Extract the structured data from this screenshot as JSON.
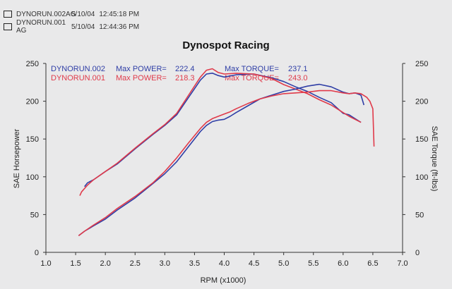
{
  "legend": [
    {
      "run": "DYNORUN.002AG",
      "date": "5/10/04",
      "time": "12:45:18 PM",
      "color": "#2f3ea6"
    },
    {
      "run": "DYNORUN.001 AG",
      "date": "5/10/04",
      "time": "12:44:36 PM",
      "color": "#e03a4a"
    }
  ],
  "chart_data": {
    "type": "line",
    "title": "Dynospot Racing",
    "xlabel": "RPM (x1000)",
    "ylabel": "SAE Horsepower",
    "y2label": "SAE Torque (ft-lbs)",
    "xlim": [
      1.0,
      7.0
    ],
    "ylim": [
      0,
      250
    ],
    "y2lim": [
      0,
      250
    ],
    "xticks": [
      "1.0",
      "1.5",
      "2.0",
      "2.5",
      "3.0",
      "3.5",
      "4.0",
      "4.5",
      "5.0",
      "5.5",
      "6.0",
      "6.5",
      "7.0"
    ],
    "yticks": [
      "0",
      "50",
      "100",
      "150",
      "200",
      "250"
    ],
    "y2ticks": [
      "0",
      "50",
      "100",
      "150",
      "200",
      "250"
    ],
    "grid": false,
    "annotations": [
      {
        "run": "DYNORUN.002",
        "power_label": "Max POWER=",
        "power": "222.4",
        "torque_label": "Max TORQUE=",
        "torque": "237.1",
        "color": "#2f3ea6"
      },
      {
        "run": "DYNORUN.001",
        "power_label": "Max POWER=",
        "power": "218.3",
        "torque_label": "Max TORQUE=",
        "torque": "243.0",
        "color": "#e03a4a"
      }
    ],
    "series": [
      {
        "name": "DYNORUN.002 Torque",
        "axis": "right",
        "color": "#2f3ea6",
        "x": [
          1.65,
          1.7,
          1.75,
          1.8,
          2.0,
          2.2,
          2.5,
          2.8,
          3.0,
          3.2,
          3.4,
          3.6,
          3.7,
          3.8,
          3.9,
          4.0,
          4.2,
          4.5,
          4.8,
          5.0,
          5.2,
          5.4,
          5.6,
          5.8,
          6.0,
          6.1,
          6.2,
          6.3
        ],
        "y": [
          87,
          92,
          94,
          96,
          107,
          117,
          137,
          156,
          168,
          182,
          205,
          228,
          236,
          237.1,
          234,
          232,
          235,
          236,
          231,
          226,
          219,
          213,
          205,
          198,
          184,
          182,
          177,
          172
        ]
      },
      {
        "name": "DYNORUN.001 Torque",
        "axis": "right",
        "color": "#e03a4a",
        "x": [
          1.57,
          1.6,
          1.7,
          1.8,
          2.0,
          2.2,
          2.5,
          2.8,
          3.0,
          3.2,
          3.4,
          3.6,
          3.7,
          3.8,
          3.9,
          4.0,
          4.2,
          4.5,
          4.8,
          5.0,
          5.2,
          5.4,
          5.6,
          5.8,
          6.0,
          6.1,
          6.2,
          6.3
        ],
        "y": [
          75,
          80,
          89,
          96,
          107,
          118,
          138,
          157,
          169,
          184,
          208,
          232,
          241,
          243,
          238,
          236,
          237,
          236,
          230,
          222,
          216,
          210,
          202,
          195,
          185,
          180,
          176,
          172
        ]
      },
      {
        "name": "DYNORUN.002 Power",
        "axis": "left",
        "color": "#2f3ea6",
        "x": [
          1.55,
          1.65,
          1.8,
          2.0,
          2.2,
          2.5,
          2.8,
          3.0,
          3.2,
          3.4,
          3.6,
          3.7,
          3.8,
          3.9,
          4.0,
          4.1,
          4.2,
          4.4,
          4.6,
          4.8,
          5.0,
          5.2,
          5.4,
          5.6,
          5.8,
          6.0,
          6.1,
          6.2,
          6.3,
          6.35
        ],
        "y": [
          22,
          28,
          35,
          44,
          56,
          72,
          91,
          104,
          120,
          140,
          160,
          168,
          173,
          175,
          176,
          180,
          185,
          194,
          203,
          208,
          213,
          216,
          220,
          222.4,
          219,
          212,
          210,
          211,
          208,
          195
        ]
      },
      {
        "name": "DYNORUN.001 Power",
        "axis": "left",
        "color": "#e03a4a",
        "x": [
          1.55,
          1.65,
          1.8,
          2.0,
          2.2,
          2.5,
          2.8,
          3.0,
          3.2,
          3.4,
          3.6,
          3.7,
          3.8,
          3.9,
          4.0,
          4.1,
          4.2,
          4.4,
          4.6,
          4.8,
          5.0,
          5.2,
          5.4,
          5.6,
          5.8,
          6.0,
          6.1,
          6.2,
          6.3,
          6.4,
          6.45,
          6.5,
          6.52
        ],
        "y": [
          22,
          28,
          36,
          46,
          58,
          74,
          92,
          107,
          125,
          145,
          164,
          172,
          177,
          180,
          183,
          186,
          190,
          197,
          203,
          207,
          210,
          211,
          212,
          214,
          214,
          211,
          210,
          211,
          210,
          205,
          200,
          190,
          140
        ]
      }
    ]
  }
}
